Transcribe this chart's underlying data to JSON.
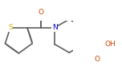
{
  "bg_color": "#ffffff",
  "bond_color": "#606060",
  "s_color": "#ccaa00",
  "o_color": "#cc4400",
  "n_color": "#0000cc",
  "lw": 1.2,
  "dbo": 0.012,
  "fig_width": 1.52,
  "fig_height": 0.93,
  "dpi": 100,
  "xlim": [
    -0.5,
    3.8
  ],
  "ylim": [
    -1.4,
    1.4
  ]
}
